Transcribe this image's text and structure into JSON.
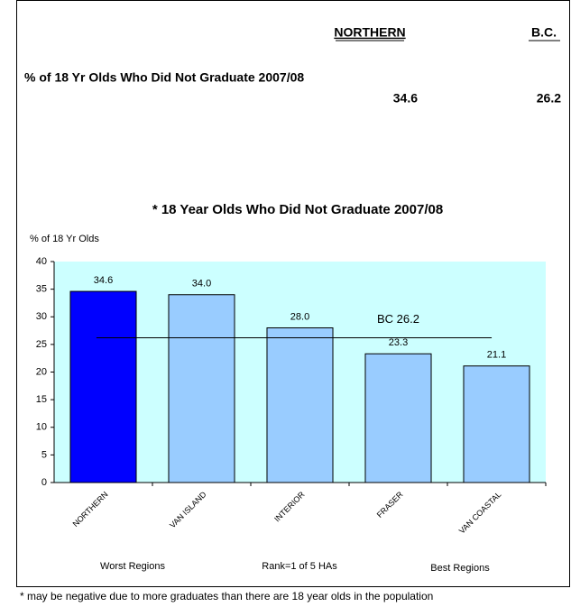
{
  "header": {
    "northern": "NORTHERN",
    "bc": "B.C.",
    "row_label": "% of 18 Yr Olds Who Did Not Graduate 2007/08",
    "northern_value": 34.6,
    "bc_value": 26.2
  },
  "chart_data": {
    "type": "bar",
    "title": "* 18 Year Olds Who Did Not Graduate 2007/08",
    "y_label": "% of 18 Yr Olds",
    "categories": [
      "NORTHERN",
      "VAN ISLAND",
      "INTERIOR",
      "FRASER",
      "VAN COASTAL"
    ],
    "values": [
      34.6,
      34.0,
      28.0,
      23.3,
      21.1
    ],
    "value_labels": [
      "34.6",
      "34.0",
      "28.0",
      "23.3",
      "21.1"
    ],
    "colors": [
      "#0000ff",
      "#99ccff",
      "#99ccff",
      "#99ccff",
      "#99ccff"
    ],
    "ylim": [
      0,
      40
    ],
    "yticks": [
      0,
      5,
      10,
      15,
      20,
      25,
      30,
      35,
      40
    ],
    "reference_line": {
      "label": "BC 26.2",
      "value": 26.2
    },
    "annotations": [
      "Worst Regions",
      "Rank=1 of 5 HAs",
      "Best Regions"
    ]
  },
  "footnote": "* may be negative due to more graduates than there are 18 year olds in the population"
}
